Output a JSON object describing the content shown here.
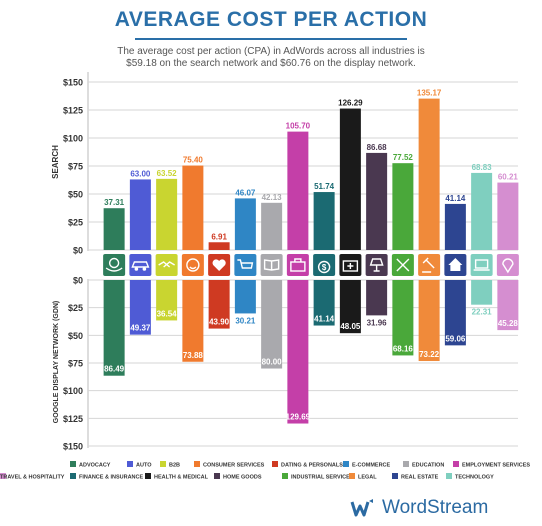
{
  "title": "AVERAGE COST PER ACTION",
  "subtitle_lines": [
    "The average cost per action (CPA) in AdWords across all industries is",
    "$59.18 on the search network and $60.76 on the display network."
  ],
  "brand": {
    "name": "WordStream",
    "color": "#2b6aa2"
  },
  "chart_data": {
    "type": "bar",
    "panels": [
      "SEARCH",
      "GOOGLE DISPLAY NETWORK (GDN)"
    ],
    "ylim": [
      -150,
      150
    ],
    "yticks": [
      "$150",
      "$125",
      "$100",
      "$75",
      "$50",
      "$25",
      "$0",
      "$0",
      "$25",
      "$50",
      "$75",
      "$100",
      "$125",
      "$150"
    ],
    "grid": true,
    "legend_position": "bottom",
    "series": [
      {
        "name": "ADVOCACY",
        "color": "#2e7d5b",
        "icon": "hands-globe-icon",
        "search": 37.31,
        "display": 86.49,
        "search_label": "37.31",
        "display_label": "86.49"
      },
      {
        "name": "AUTO",
        "color": "#4f5bd5",
        "icon": "car-icon",
        "search": 63.0,
        "display": 49.37,
        "search_label": "63.00",
        "display_label": "49.37"
      },
      {
        "name": "B2B",
        "color": "#c9d530",
        "icon": "handshake-icon",
        "search": 63.52,
        "display": 36.54,
        "search_label": "63.52",
        "display_label": "36.54"
      },
      {
        "name": "CONSUMER SERVICES",
        "color": "#f07a2e",
        "icon": "smiley-icon",
        "search": 75.4,
        "display": 73.88,
        "search_label": "75.40",
        "display_label": "73.88"
      },
      {
        "name": "DATING & PERSONALS",
        "color": "#cf3a22",
        "icon": "heart-icon",
        "search": 6.91,
        "display": 43.9,
        "search_label": "6.91",
        "display_label": "43.90"
      },
      {
        "name": "E-COMMERCE",
        "color": "#2f86c5",
        "icon": "cart-icon",
        "search": 46.07,
        "display": 30.21,
        "search_label": "46.07",
        "display_label": "30.21"
      },
      {
        "name": "EDUCATION",
        "color": "#a9a9ad",
        "icon": "book-icon",
        "search": 42.13,
        "display": 80.0,
        "search_label": "42.13",
        "display_label": "80.00"
      },
      {
        "name": "EMPLOYMENT SERVICES",
        "color": "#c43fa8",
        "icon": "briefcase-icon",
        "search": 105.7,
        "display": 129.69,
        "search_label": "105.70",
        "display_label": "129.69"
      },
      {
        "name": "FINANCE & INSURANCE",
        "color": "#1b6a72",
        "icon": "money-bag-icon",
        "search": 51.74,
        "display": 41.14,
        "search_label": "51.74",
        "display_label": "41.14"
      },
      {
        "name": "HEALTH & MEDICAL",
        "color": "#1a1a1a",
        "icon": "medical-kit-icon",
        "search": 126.29,
        "display": 48.05,
        "search_label": "126.29",
        "display_label": "48.05"
      },
      {
        "name": "HOME GOODS",
        "color": "#4a3850",
        "icon": "lamp-icon",
        "search": 86.68,
        "display": 31.96,
        "search_label": "86.68",
        "display_label": "31.96"
      },
      {
        "name": "INDUSTRIAL SERVICES",
        "color": "#4aa83a",
        "icon": "tools-icon",
        "search": 77.52,
        "display": 68.16,
        "search_label": "77.52",
        "display_label": "68.16"
      },
      {
        "name": "LEGAL",
        "color": "#f08a3a",
        "icon": "gavel-icon",
        "search": 135.17,
        "display": 73.22,
        "search_label": "135.17",
        "display_label": "73.22"
      },
      {
        "name": "REAL ESTATE",
        "color": "#2d4591",
        "icon": "house-icon",
        "search": 41.14,
        "display": 59.06,
        "search_label": "41.14",
        "display_label": "59.06"
      },
      {
        "name": "TECHNOLOGY",
        "color": "#7fcfbf",
        "icon": "laptop-icon",
        "search": 68.83,
        "display": 22.31,
        "search_label": "68.83",
        "display_label": "22.31"
      },
      {
        "name": "TRAVEL & HOSPITALITY",
        "color": "#d58ed0",
        "icon": "map-pin-icon",
        "search": 60.21,
        "display": 45.28,
        "search_label": "60.21",
        "display_label": "45.28"
      }
    ]
  }
}
